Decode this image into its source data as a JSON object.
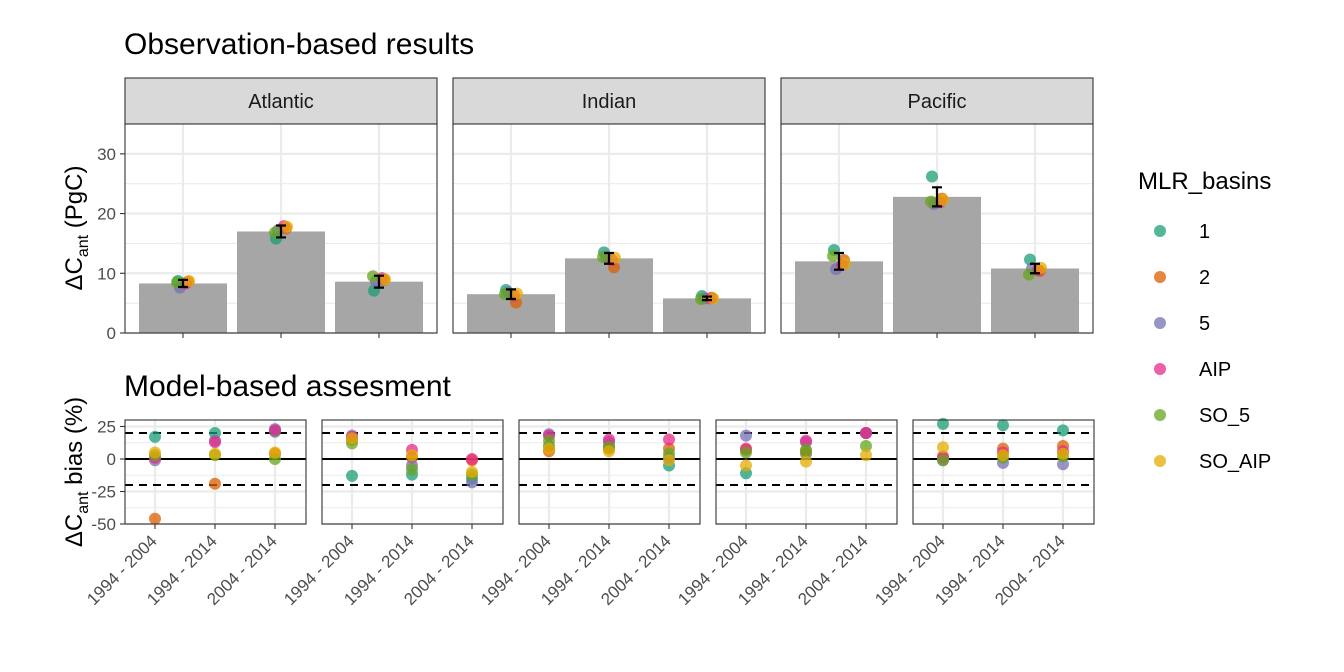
{
  "figure": {
    "top_title": "Observation-based results",
    "bottom_title": "Model-based assesment"
  },
  "legend": {
    "title": "MLR_basins",
    "items": [
      {
        "label": "1",
        "color": "#1b9e77"
      },
      {
        "label": "2",
        "color": "#d95f02"
      },
      {
        "label": "5",
        "color": "#7570b3"
      },
      {
        "label": "AIP",
        "color": "#e7298a"
      },
      {
        "label": "SO_5",
        "color": "#66a61e"
      },
      {
        "label": "SO_AIP",
        "color": "#e6ab02"
      }
    ]
  },
  "chart_data": [
    {
      "type": "bar",
      "title": "Observation-based results",
      "ylabel_main": "ΔC",
      "ylabel_sub": "ant",
      "ylabel_rest": " (PgC)",
      "ylim": [
        0,
        35
      ],
      "yticks": [
        0,
        10,
        20,
        30
      ],
      "grid": true,
      "facets": [
        {
          "name": "Atlantic",
          "bars": [
            8.3,
            17.0,
            8.6
          ],
          "errors": [
            0.6,
            1.0,
            1.0
          ],
          "points": [
            [
              8.7,
              8.6,
              7.6,
              8.3,
              8.5,
              8.7
            ],
            [
              15.8,
              17.5,
              17.2,
              17.9,
              16.8,
              17.8
            ],
            [
              7.1,
              8.9,
              8.7,
              9.2,
              9.5,
              9.0
            ]
          ]
        },
        {
          "name": "Indian",
          "bars": [
            6.5,
            12.5,
            5.8
          ],
          "errors": [
            0.8,
            0.9,
            0.3
          ],
          "points": [
            [
              7.2,
              5.1,
              6.8,
              6.3,
              6.5,
              6.6
            ],
            [
              13.5,
              11.0,
              12.8,
              12.2,
              12.7,
              12.6
            ],
            [
              6.2,
              5.9,
              5.8,
              5.8,
              5.7,
              5.8
            ]
          ]
        },
        {
          "name": "Pacific",
          "bars": [
            12.0,
            22.8,
            10.8
          ],
          "errors": [
            1.4,
            1.6,
            0.8
          ],
          "points": [
            [
              13.9,
              12.2,
              10.7,
              11.4,
              12.9,
              11.6
            ],
            [
              26.2,
              22.5,
              21.6,
              21.9,
              22.0,
              22.3
            ],
            [
              12.3,
              10.4,
              10.8,
              10.5,
              9.8,
              10.9
            ]
          ]
        }
      ]
    },
    {
      "type": "scatter",
      "title": "Model-based assesment",
      "ylabel_main": "ΔC",
      "ylabel_sub": "ant",
      "ylabel_rest": " bias (%)",
      "ylim": [
        -50,
        30
      ],
      "yticks": [
        -50,
        -25,
        0,
        25
      ],
      "reference_lines": [
        20,
        -20
      ],
      "zero_line": 0,
      "categories": [
        "1994 - 2004",
        "1994 - 2014",
        "2004 - 2014"
      ],
      "grid": true,
      "panels": [
        {
          "points": [
            [
              17,
              -46,
              -1,
              1,
              3,
              5
            ],
            [
              20,
              -19,
              14,
              13,
              3,
              4
            ],
            [
              21,
              4,
              23,
              22,
              0,
              5
            ]
          ]
        },
        {
          "points": [
            [
              -13,
              15,
              18,
              17,
              12,
              16
            ],
            [
              -12,
              1,
              -5,
              7,
              -8,
              3
            ],
            [
              -15,
              -1,
              -18,
              0,
              -12,
              -10
            ]
          ]
        },
        {
          "points": [
            [
              10,
              6,
              19,
              18,
              14,
              8
            ],
            [
              10,
              8,
              13,
              15,
              9,
              6
            ],
            [
              -5,
              8,
              1,
              15,
              4,
              -1
            ]
          ]
        },
        {
          "points": [
            [
              -11,
              7,
              18,
              8,
              5,
              -5
            ],
            [
              4,
              6,
              13,
              14,
              7,
              -2
            ],
            [
              20,
              20,
              20,
              20,
              10,
              3
            ]
          ]
        },
        {
          "points": [
            [
              27,
              2,
              -1,
              1,
              -1,
              9
            ],
            [
              26,
              8,
              -3,
              5,
              1,
              3
            ],
            [
              22,
              10,
              -4,
              6,
              2,
              4
            ]
          ]
        }
      ]
    }
  ]
}
